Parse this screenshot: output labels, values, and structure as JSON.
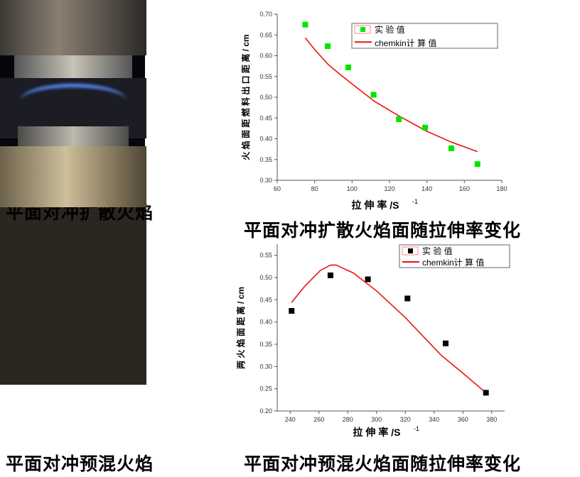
{
  "panels": {
    "photo1_caption": "平面对冲扩散火焰",
    "chart1_caption": "平面对冲扩散火焰面随拉伸率变化",
    "photo2_caption": "平面对冲预混火焰",
    "chart2_caption": "平面对冲预混火焰面随拉伸率变化"
  },
  "chart_data": [
    {
      "type": "scatter+line",
      "xlabel": "拉 伸 率 /S",
      "xlabel_sup": "-1",
      "ylabel": "火 焰 面 距 燃 料 出 口 距 离 / cm",
      "xlim": [
        60,
        180
      ],
      "ylim": [
        0.3,
        0.7
      ],
      "xticks": [
        60,
        80,
        100,
        120,
        140,
        160,
        180
      ],
      "yticks": [
        "0.30",
        "0.35",
        "0.40",
        "0.45",
        "0.50",
        "0.55",
        "0.60",
        "0.65",
        "0.70"
      ],
      "legend_position": "top-right",
      "series": [
        {
          "name": "实   验   值",
          "kind": "scatter",
          "color": "#00e600",
          "x": [
            75,
            87,
            98,
            111.5,
            125,
            139,
            153,
            167
          ],
          "y": [
            0.675,
            0.623,
            0.572,
            0.506,
            0.447,
            0.427,
            0.377,
            0.339
          ]
        },
        {
          "name": "chemkin计 算 值",
          "kind": "line",
          "color": "#ee1111",
          "x": [
            75,
            80,
            87,
            93,
            100,
            112,
            125,
            140,
            153,
            167
          ],
          "y": [
            0.643,
            0.615,
            0.58,
            0.557,
            0.532,
            0.49,
            0.455,
            0.418,
            0.392,
            0.369
          ]
        }
      ]
    },
    {
      "type": "scatter+line",
      "xlabel": "拉 伸 率 /S",
      "xlabel_sup": "-1",
      "ylabel": "两 火 焰 面 距 离 / cm",
      "xlim": [
        231,
        389
      ],
      "ylim": [
        0.2,
        0.575
      ],
      "xticks": [
        240,
        260,
        280,
        300,
        320,
        340,
        360,
        380
      ],
      "yticks": [
        "0.20",
        "0.25",
        "0.30",
        "0.35",
        "0.40",
        "0.45",
        "0.50",
        "0.55"
      ],
      "legend_position": "top-right",
      "series": [
        {
          "name": "实   验   值",
          "kind": "scatter",
          "color": "#000000",
          "x": [
            241,
            268,
            294,
            321.5,
            348,
            376
          ],
          "y": [
            0.425,
            0.505,
            0.496,
            0.453,
            0.352,
            0.241
          ]
        },
        {
          "name": "chemkin计 算 值",
          "kind": "line",
          "color": "#ee1111",
          "x": [
            241,
            250,
            261,
            268,
            272,
            284,
            300,
            320,
            345,
            360,
            376
          ],
          "y": [
            0.444,
            0.48,
            0.516,
            0.528,
            0.528,
            0.51,
            0.47,
            0.41,
            0.325,
            0.285,
            0.241
          ]
        }
      ]
    }
  ]
}
